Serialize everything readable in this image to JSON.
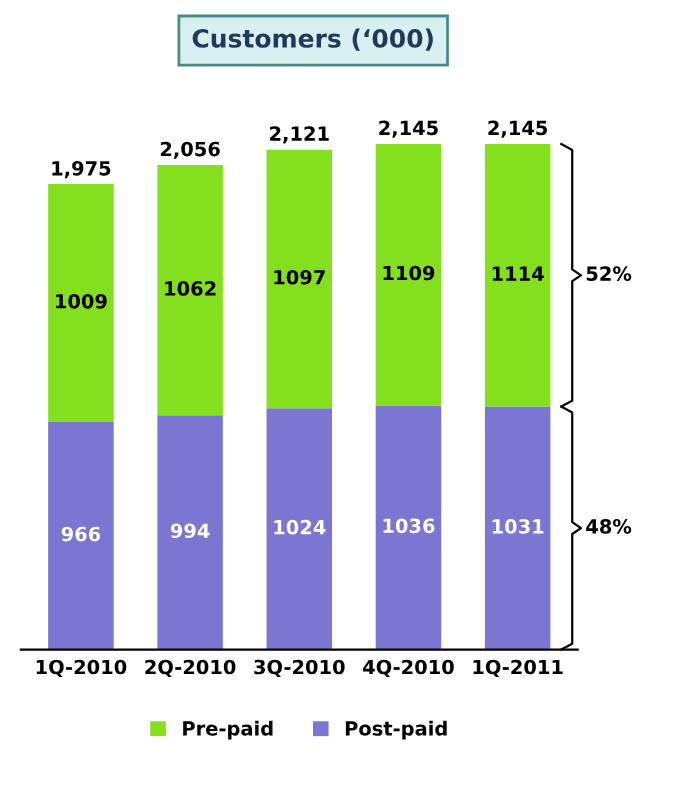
{
  "chart_data": {
    "type": "bar",
    "title": "Customers (‘000)",
    "stacked": true,
    "categories": [
      "1Q-2010",
      "2Q-2010",
      "3Q-2010",
      "4Q-2010",
      "1Q-2011"
    ],
    "series": [
      {
        "name": "Post-paid",
        "color": "#7b76d2",
        "values": [
          966,
          994,
          1024,
          1036,
          1031
        ]
      },
      {
        "name": "Pre-paid",
        "color": "#84e01e",
        "values": [
          1009,
          1062,
          1097,
          1109,
          1114
        ]
      }
    ],
    "totals": [
      "1,975",
      "2,056",
      "2,121",
      "2,145",
      "2,145"
    ],
    "data_labels": true,
    "tick_labels": "x",
    "grid": false,
    "legend": "bottom",
    "annotations": [
      "48%",
      "52%"
    ]
  }
}
